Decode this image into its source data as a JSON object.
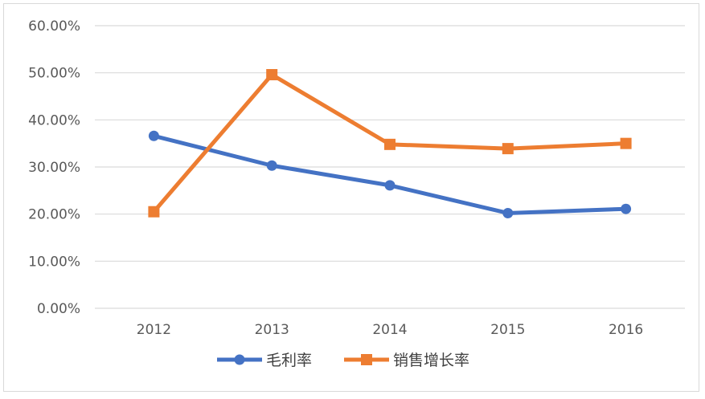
{
  "chart_data": {
    "type": "line",
    "title": "",
    "xlabel": "",
    "ylabel": "",
    "categories": [
      "2012",
      "2013",
      "2014",
      "2015",
      "2016"
    ],
    "ylim": [
      0,
      0.6
    ],
    "yticks": [
      0,
      0.1,
      0.2,
      0.3,
      0.4,
      0.5,
      0.6
    ],
    "ytick_labels": [
      "0.00%",
      "10.00%",
      "20.00%",
      "30.00%",
      "40.00%",
      "50.00%",
      "60.00%"
    ],
    "grid": true,
    "legend_position": "bottom",
    "series": [
      {
        "name": "毛利率",
        "values": [
          0.366,
          0.303,
          0.261,
          0.202,
          0.211
        ],
        "color": "#4472c4",
        "marker": "circle"
      },
      {
        "name": "销售增长率",
        "values": [
          0.205,
          0.496,
          0.348,
          0.339,
          0.35
        ],
        "color": "#ed7d31",
        "marker": "square"
      }
    ]
  }
}
